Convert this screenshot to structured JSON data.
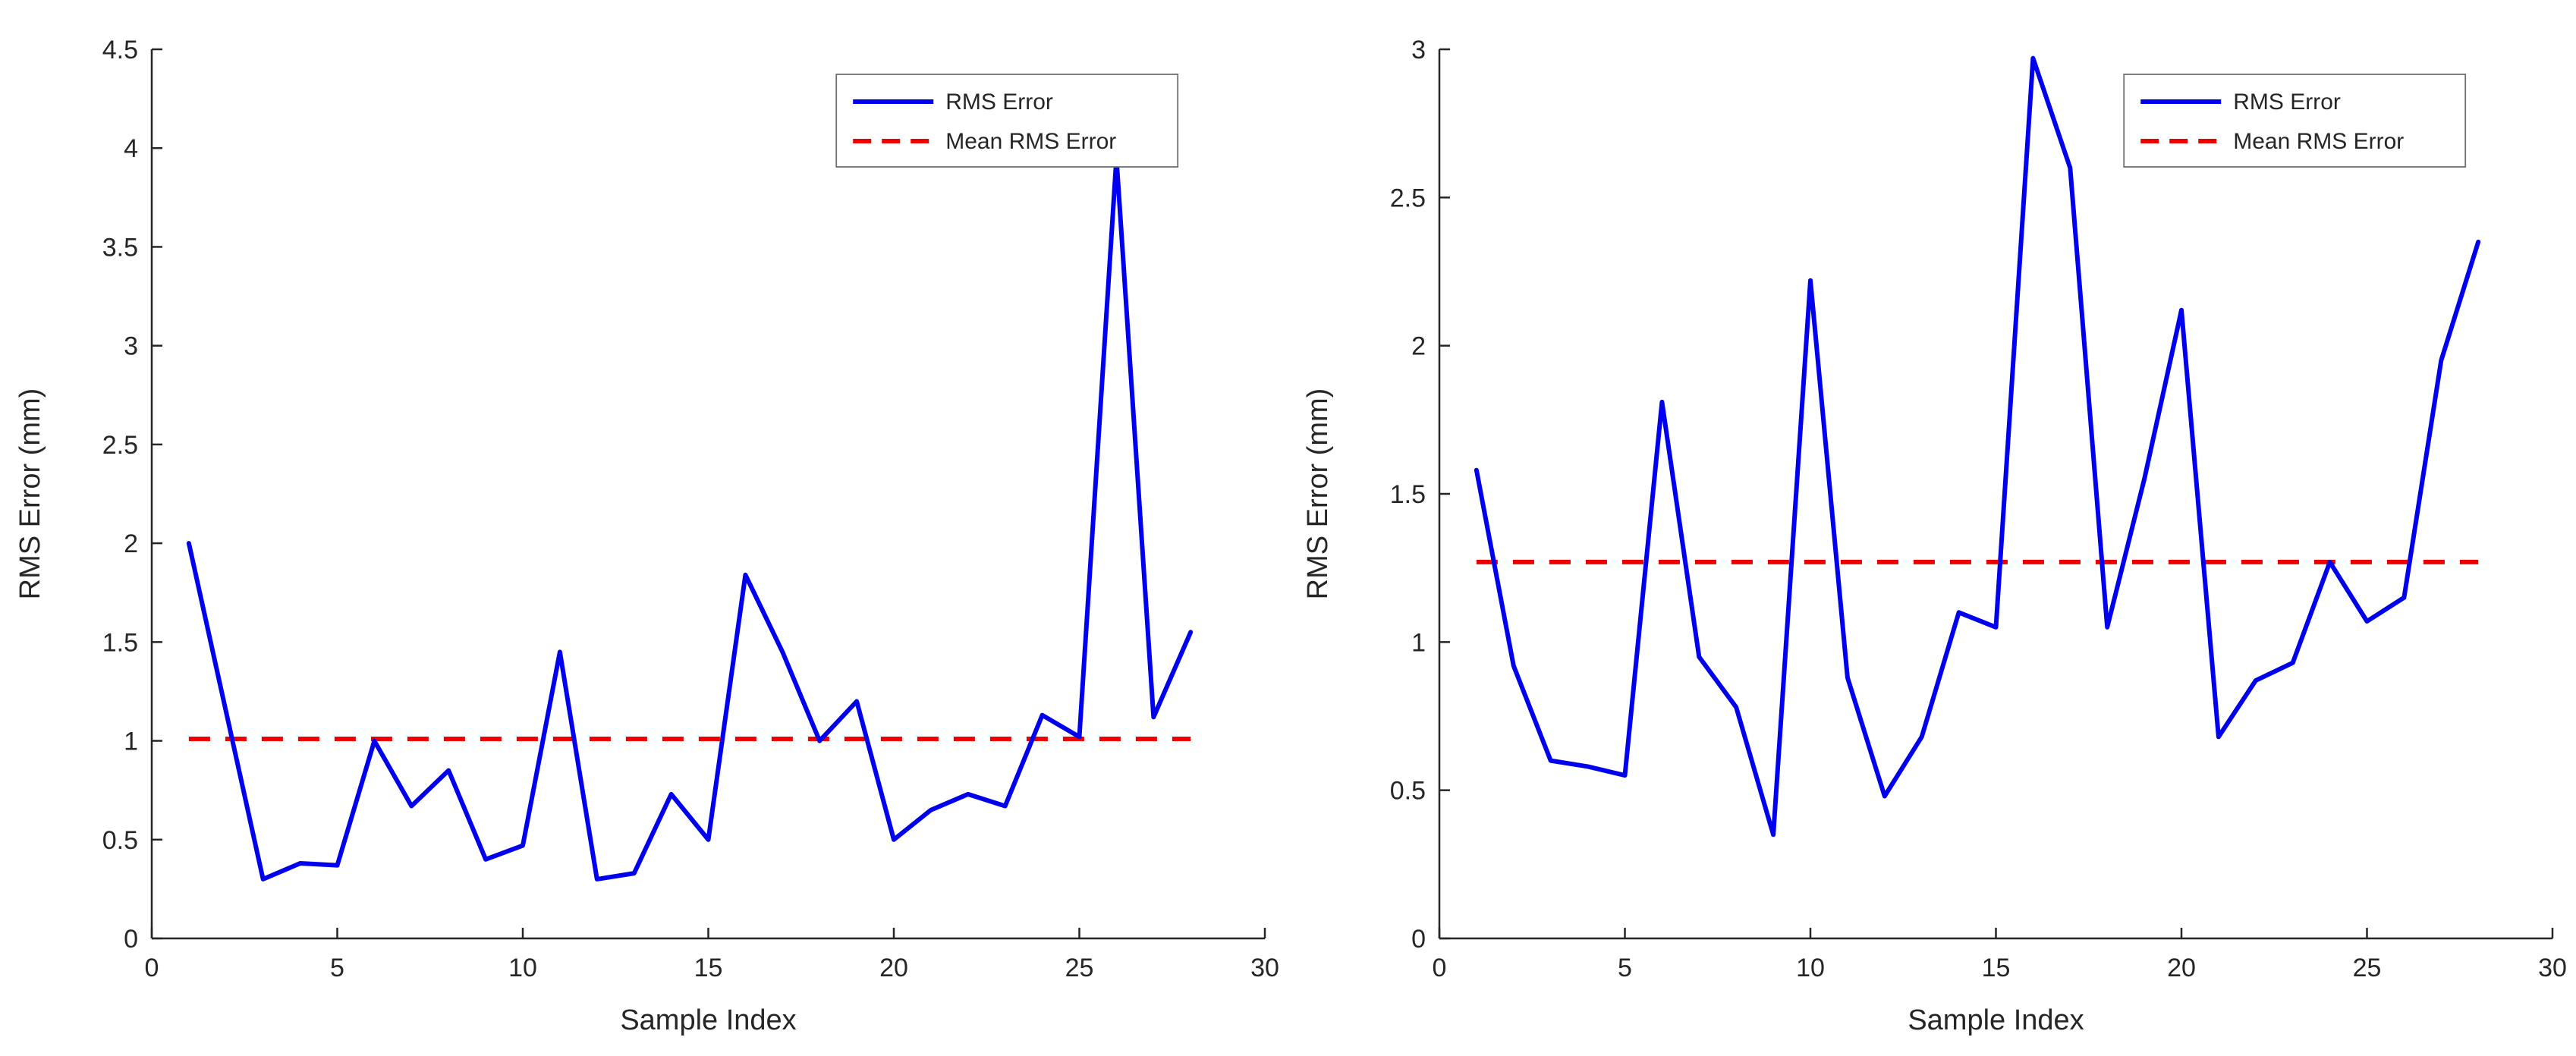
{
  "figure": {
    "background": "#ffffff",
    "axis_color": "#262626"
  },
  "chart_data": [
    {
      "type": "line",
      "title": "",
      "xlabel": "Sample Index",
      "ylabel": "RMS Error (mm)",
      "xlim": [
        0,
        30
      ],
      "ylim": [
        0,
        4.5
      ],
      "xticks": [
        0,
        5,
        10,
        15,
        20,
        25,
        30
      ],
      "yticks": [
        0,
        0.5,
        1,
        1.5,
        2,
        2.5,
        3,
        3.5,
        4,
        4.5
      ],
      "grid": false,
      "x": [
        1,
        2,
        3,
        4,
        5,
        6,
        7,
        8,
        9,
        10,
        11,
        12,
        13,
        14,
        15,
        16,
        17,
        18,
        19,
        20,
        21,
        22,
        23,
        24,
        25,
        26,
        27,
        28
      ],
      "series": [
        {
          "name": "RMS Error",
          "color": "#0000ee",
          "style": "solid",
          "values": [
            2.0,
            1.15,
            0.3,
            0.38,
            0.37,
            1.0,
            0.67,
            0.85,
            0.4,
            0.47,
            1.45,
            0.3,
            0.33,
            0.73,
            0.5,
            1.84,
            1.45,
            1.0,
            1.2,
            0.5,
            0.65,
            0.73,
            0.67,
            1.13,
            1.02,
            3.95,
            1.12,
            1.55
          ]
        },
        {
          "name": "Mean RMS Error",
          "color": "#ee0000",
          "style": "dashed",
          "mean_value": 1.01
        }
      ],
      "legend": {
        "location": "upper-right",
        "entries": [
          "RMS Error",
          "Mean RMS Error"
        ]
      }
    },
    {
      "type": "line",
      "title": "",
      "xlabel": "Sample Index",
      "ylabel": "RMS Error (mm)",
      "xlim": [
        0,
        30
      ],
      "ylim": [
        0,
        3
      ],
      "xticks": [
        0,
        5,
        10,
        15,
        20,
        25,
        30
      ],
      "yticks": [
        0,
        0.5,
        1,
        1.5,
        2,
        2.5,
        3
      ],
      "grid": false,
      "x": [
        1,
        2,
        3,
        4,
        5,
        6,
        7,
        8,
        9,
        10,
        11,
        12,
        13,
        14,
        15,
        16,
        17,
        18,
        19,
        20,
        21,
        22,
        23,
        24,
        25,
        26,
        27,
        28
      ],
      "series": [
        {
          "name": "RMS Error",
          "color": "#0000ee",
          "style": "solid",
          "values": [
            1.58,
            0.92,
            0.6,
            0.58,
            0.55,
            1.81,
            0.95,
            0.78,
            0.35,
            2.22,
            0.88,
            0.48,
            0.68,
            1.1,
            1.05,
            2.97,
            2.6,
            1.05,
            1.55,
            2.12,
            0.68,
            0.87,
            0.93,
            1.27,
            1.07,
            1.15,
            1.95,
            2.35
          ]
        },
        {
          "name": "Mean RMS Error",
          "color": "#ee0000",
          "style": "dashed",
          "mean_value": 1.27
        }
      ],
      "legend": {
        "location": "upper-right",
        "entries": [
          "RMS Error",
          "Mean RMS Error"
        ]
      }
    }
  ]
}
